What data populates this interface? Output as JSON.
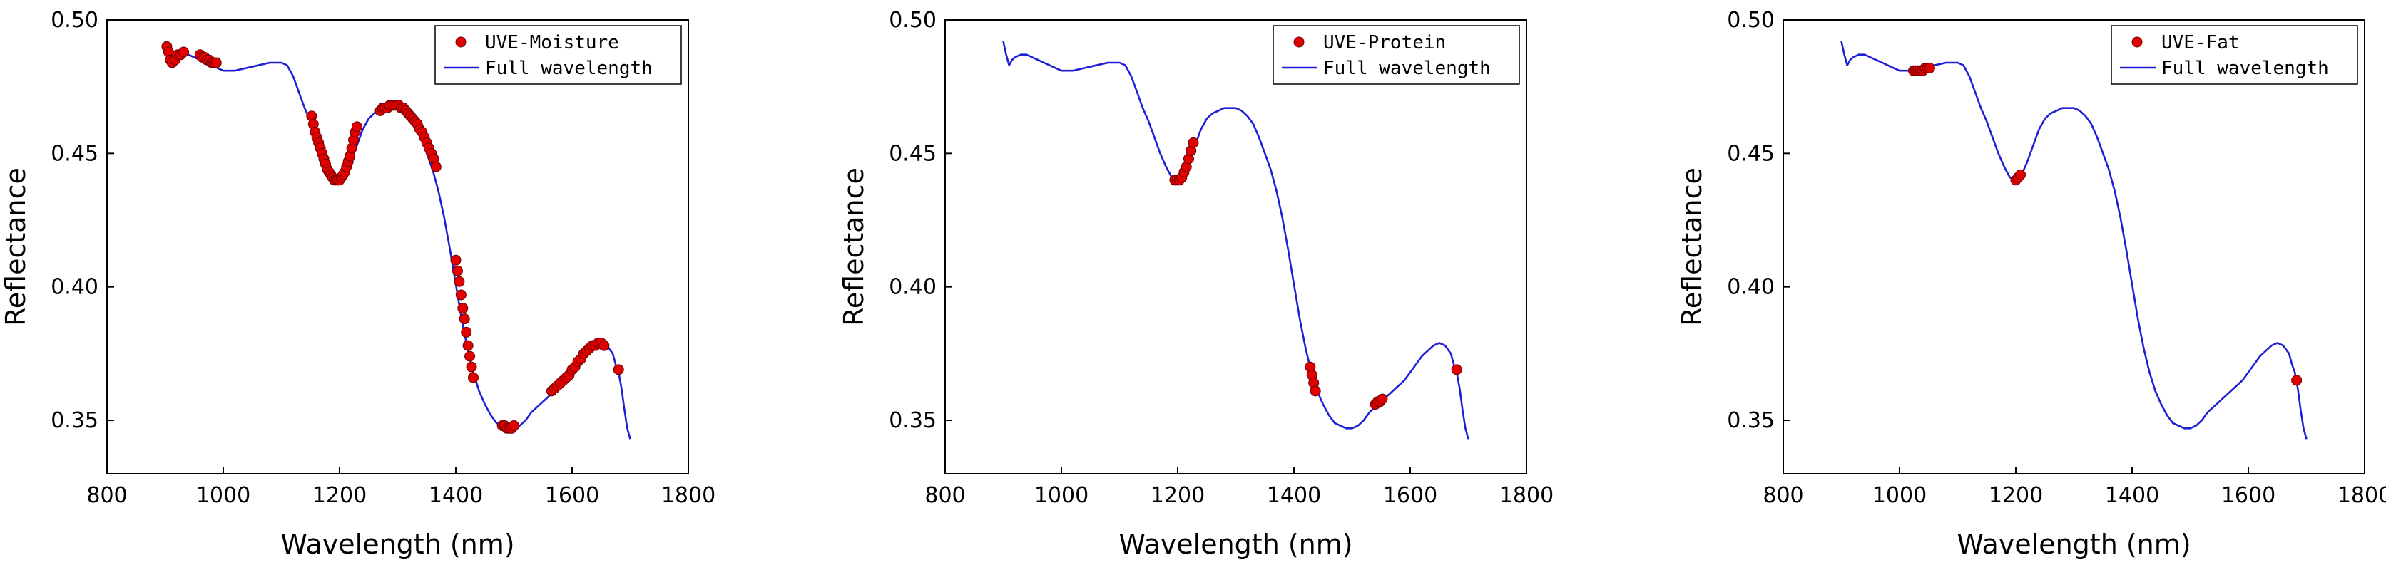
{
  "colors": {
    "full_line": "#1f1fd6",
    "uve_marker": "#e00000",
    "marker_edge": "#6a0000",
    "axis": "#000000"
  },
  "chart_data": [
    {
      "type": "line",
      "xlabel": "Wavelength (nm)",
      "ylabel": "Reflectance",
      "xlim": [
        800,
        1800
      ],
      "ylim": [
        0.33,
        0.5
      ],
      "xticks": [
        800,
        1000,
        1200,
        1400,
        1600,
        1800
      ],
      "yticks": [
        0.35,
        0.4,
        0.45,
        0.5
      ],
      "ytick_labels": [
        "0.35",
        "0.40",
        "0.45",
        "0.50"
      ],
      "legend_position": "top-right",
      "series": [
        {
          "name": "UVE-Moisture",
          "kind": "scatter",
          "x": [
            903,
            906,
            909,
            912,
            917,
            922,
            927,
            932,
            960,
            964,
            968,
            972,
            976,
            980,
            984,
            988,
            1152,
            1155,
            1158,
            1161,
            1164,
            1167,
            1170,
            1173,
            1176,
            1179,
            1182,
            1185,
            1188,
            1191,
            1194,
            1197,
            1200,
            1203,
            1206,
            1209,
            1212,
            1215,
            1218,
            1221,
            1224,
            1227,
            1230,
            1270,
            1274,
            1278,
            1282,
            1286,
            1290,
            1294,
            1298,
            1302,
            1306,
            1310,
            1314,
            1318,
            1322,
            1326,
            1330,
            1334,
            1338,
            1342,
            1346,
            1350,
            1354,
            1358,
            1362,
            1366,
            1400,
            1403,
            1406,
            1409,
            1412,
            1415,
            1418,
            1421,
            1424,
            1427,
            1430,
            1480,
            1484,
            1488,
            1492,
            1496,
            1500,
            1565,
            1570,
            1575,
            1580,
            1585,
            1590,
            1595,
            1600,
            1605,
            1610,
            1615,
            1620,
            1625,
            1630,
            1635,
            1640,
            1645,
            1650,
            1655,
            1680
          ],
          "y": [
            0.49,
            0.488,
            0.485,
            0.484,
            0.485,
            0.487,
            0.487,
            0.488,
            0.487,
            0.486,
            0.486,
            0.485,
            0.485,
            0.484,
            0.484,
            0.484,
            0.464,
            0.461,
            0.458,
            0.456,
            0.454,
            0.452,
            0.45,
            0.448,
            0.446,
            0.444,
            0.443,
            0.442,
            0.441,
            0.44,
            0.44,
            0.44,
            0.44,
            0.441,
            0.442,
            0.443,
            0.445,
            0.447,
            0.449,
            0.452,
            0.455,
            0.458,
            0.46,
            0.466,
            0.467,
            0.467,
            0.467,
            0.468,
            0.468,
            0.468,
            0.468,
            0.468,
            0.467,
            0.467,
            0.466,
            0.465,
            0.464,
            0.463,
            0.462,
            0.461,
            0.459,
            0.458,
            0.456,
            0.454,
            0.452,
            0.45,
            0.448,
            0.445,
            0.41,
            0.406,
            0.402,
            0.397,
            0.392,
            0.388,
            0.383,
            0.378,
            0.374,
            0.37,
            0.366,
            0.348,
            0.348,
            0.347,
            0.347,
            0.347,
            0.348,
            0.361,
            0.362,
            0.363,
            0.364,
            0.365,
            0.366,
            0.367,
            0.369,
            0.37,
            0.372,
            0.373,
            0.375,
            0.376,
            0.377,
            0.378,
            0.378,
            0.379,
            0.379,
            0.378,
            0.369
          ]
        },
        {
          "name": "Full wavelength",
          "kind": "line",
          "ref": "full_curve"
        }
      ]
    },
    {
      "type": "line",
      "xlabel": "Wavelength (nm)",
      "ylabel": "Reflectance",
      "xlim": [
        800,
        1800
      ],
      "ylim": [
        0.33,
        0.5
      ],
      "xticks": [
        800,
        1000,
        1200,
        1400,
        1600,
        1800
      ],
      "yticks": [
        0.35,
        0.4,
        0.45,
        0.5
      ],
      "ytick_labels": [
        "0.35",
        "0.40",
        "0.45",
        "0.50"
      ],
      "legend_position": "top-right",
      "series": [
        {
          "name": "UVE-Protein",
          "kind": "scatter",
          "x": [
            1195,
            1199,
            1203,
            1207,
            1211,
            1215,
            1219,
            1223,
            1227,
            1428,
            1431,
            1434,
            1437,
            1540,
            1544,
            1548,
            1552,
            1680
          ],
          "y": [
            0.44,
            0.44,
            0.44,
            0.441,
            0.443,
            0.445,
            0.448,
            0.451,
            0.454,
            0.37,
            0.367,
            0.364,
            0.361,
            0.356,
            0.357,
            0.357,
            0.358,
            0.369
          ]
        },
        {
          "name": "Full wavelength",
          "kind": "line",
          "ref": "full_curve"
        }
      ]
    },
    {
      "type": "line",
      "xlabel": "Wavelength (nm)",
      "ylabel": "Reflectance",
      "xlim": [
        800,
        1800
      ],
      "ylim": [
        0.33,
        0.5
      ],
      "xticks": [
        800,
        1000,
        1200,
        1400,
        1600,
        1800
      ],
      "yticks": [
        0.35,
        0.4,
        0.45,
        0.5
      ],
      "ytick_labels": [
        "0.35",
        "0.40",
        "0.45",
        "0.50"
      ],
      "legend_position": "top-right",
      "series": [
        {
          "name": "UVE-Fat",
          "kind": "scatter",
          "x": [
            1024,
            1028,
            1032,
            1036,
            1040,
            1044,
            1048,
            1052,
            1200,
            1204,
            1208,
            1683
          ],
          "y": [
            0.481,
            0.481,
            0.481,
            0.481,
            0.481,
            0.482,
            0.482,
            0.482,
            0.44,
            0.441,
            0.442,
            0.365
          ]
        },
        {
          "name": "Full wavelength",
          "kind": "line",
          "ref": "full_curve"
        }
      ]
    }
  ],
  "full_curve": {
    "x": [
      900,
      905,
      910,
      915,
      920,
      930,
      940,
      950,
      960,
      970,
      980,
      990,
      1000,
      1020,
      1040,
      1060,
      1080,
      1100,
      1110,
      1120,
      1130,
      1140,
      1150,
      1160,
      1170,
      1180,
      1190,
      1200,
      1210,
      1220,
      1230,
      1240,
      1250,
      1260,
      1270,
      1280,
      1290,
      1300,
      1310,
      1320,
      1330,
      1340,
      1350,
      1360,
      1370,
      1380,
      1390,
      1400,
      1410,
      1420,
      1430,
      1440,
      1450,
      1460,
      1470,
      1480,
      1490,
      1500,
      1510,
      1520,
      1530,
      1540,
      1550,
      1560,
      1570,
      1580,
      1590,
      1600,
      1610,
      1620,
      1630,
      1640,
      1650,
      1660,
      1670,
      1675,
      1680,
      1685,
      1690,
      1695,
      1700
    ],
    "y": [
      0.492,
      0.487,
      0.483,
      0.485,
      0.486,
      0.487,
      0.487,
      0.486,
      0.485,
      0.484,
      0.483,
      0.482,
      0.481,
      0.481,
      0.482,
      0.483,
      0.484,
      0.484,
      0.483,
      0.479,
      0.473,
      0.467,
      0.462,
      0.456,
      0.45,
      0.445,
      0.441,
      0.44,
      0.442,
      0.447,
      0.453,
      0.459,
      0.463,
      0.465,
      0.466,
      0.467,
      0.467,
      0.467,
      0.466,
      0.464,
      0.461,
      0.456,
      0.45,
      0.444,
      0.436,
      0.426,
      0.414,
      0.401,
      0.388,
      0.377,
      0.368,
      0.361,
      0.356,
      0.352,
      0.349,
      0.348,
      0.347,
      0.347,
      0.348,
      0.35,
      0.353,
      0.355,
      0.357,
      0.359,
      0.361,
      0.363,
      0.365,
      0.368,
      0.371,
      0.374,
      0.376,
      0.378,
      0.379,
      0.378,
      0.375,
      0.371,
      0.368,
      0.362,
      0.354,
      0.347,
      0.343
    ]
  }
}
